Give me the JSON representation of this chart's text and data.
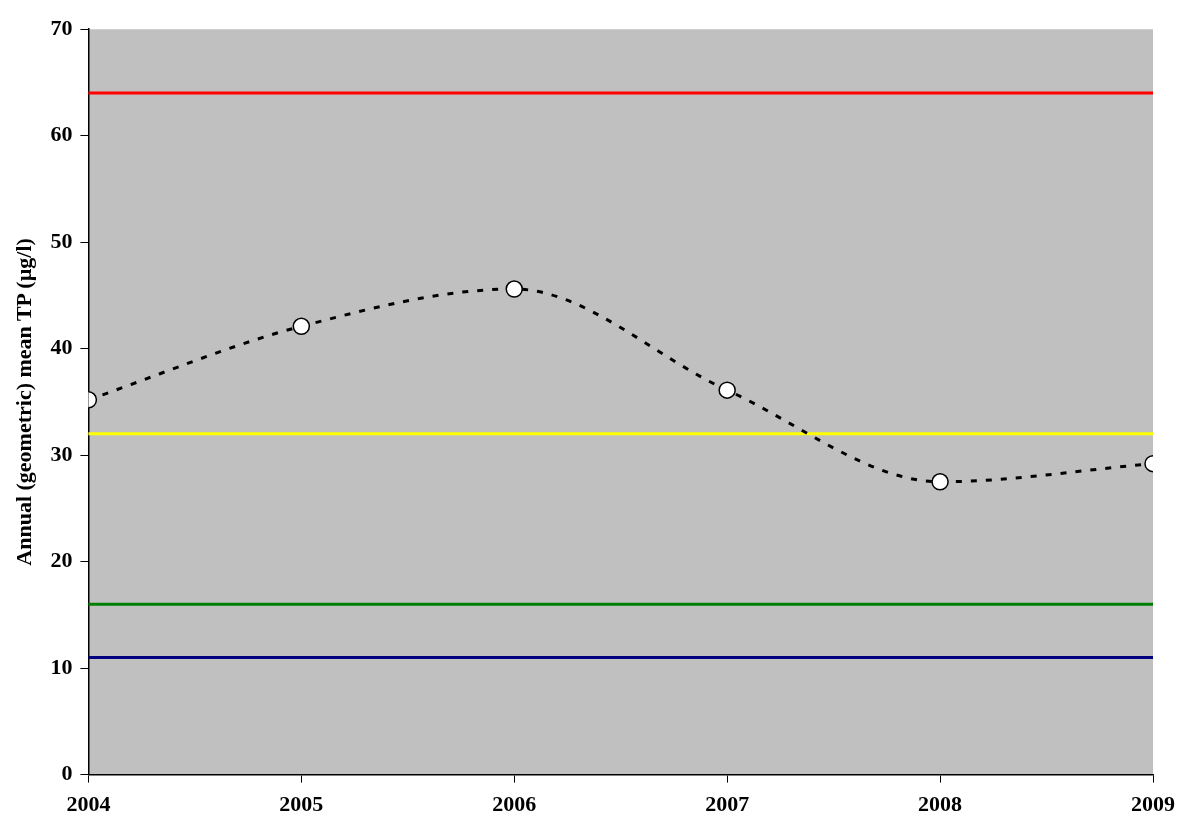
{
  "chart_data": {
    "type": "line",
    "ylabel": "Annual (geometric) mean TP (µg/l)",
    "x": [
      2004,
      2005,
      2006,
      2007,
      2008,
      2009
    ],
    "series": [
      {
        "color": "#000000",
        "values": [
          35.2,
          42.1,
          45.6,
          36.1,
          27.5,
          29.2
        ]
      }
    ],
    "xlim": [
      2004,
      2009
    ],
    "xticks": [
      2004,
      2005,
      2006,
      2007,
      2008,
      2009
    ],
    "ylim": [
      0,
      70
    ],
    "yticks": [
      0,
      10,
      20,
      30,
      40,
      50,
      60,
      70
    ],
    "ref_lines": [
      {
        "axis": "y",
        "value": 64,
        "color": "#ff0000"
      },
      {
        "axis": "y",
        "value": 32,
        "color": "#ffff00"
      },
      {
        "axis": "y",
        "value": 16,
        "color": "#008000"
      },
      {
        "axis": "y",
        "value": 11,
        "color": "#000080"
      }
    ],
    "grid": false,
    "legend": false,
    "marker": "circle",
    "line_style": "dashed"
  }
}
